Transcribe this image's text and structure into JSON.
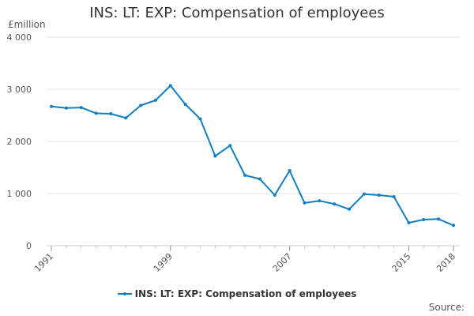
{
  "chart_data": {
    "type": "line",
    "title": "INS: LT: EXP: Compensation of employees",
    "unit_label": "£million",
    "source_label": "Source:",
    "x_tick_labels": [
      "1991",
      "1999",
      "2007",
      "2015",
      "2018"
    ],
    "y_tick_labels": [
      "0",
      "1 000",
      "2 000",
      "3 000",
      "4 000"
    ],
    "ylim": [
      0,
      4000
    ],
    "xlim": [
      1991,
      2018
    ],
    "grid": true,
    "legend_position": "bottom",
    "series": [
      {
        "name": "INS: LT: EXP: Compensation of employees",
        "color": "#0f7fbf",
        "x": [
          1991,
          1992,
          1993,
          1994,
          1995,
          1996,
          1997,
          1998,
          1999,
          2000,
          2001,
          2002,
          2003,
          2004,
          2005,
          2006,
          2007,
          2008,
          2009,
          2010,
          2011,
          2012,
          2013,
          2014,
          2015,
          2016,
          2017,
          2018
        ],
        "values": [
          2670,
          2640,
          2650,
          2540,
          2530,
          2450,
          2690,
          2790,
          3070,
          2710,
          2430,
          1720,
          1920,
          1350,
          1280,
          970,
          1440,
          820,
          860,
          800,
          700,
          990,
          970,
          940,
          440,
          500,
          510,
          390
        ]
      }
    ]
  }
}
